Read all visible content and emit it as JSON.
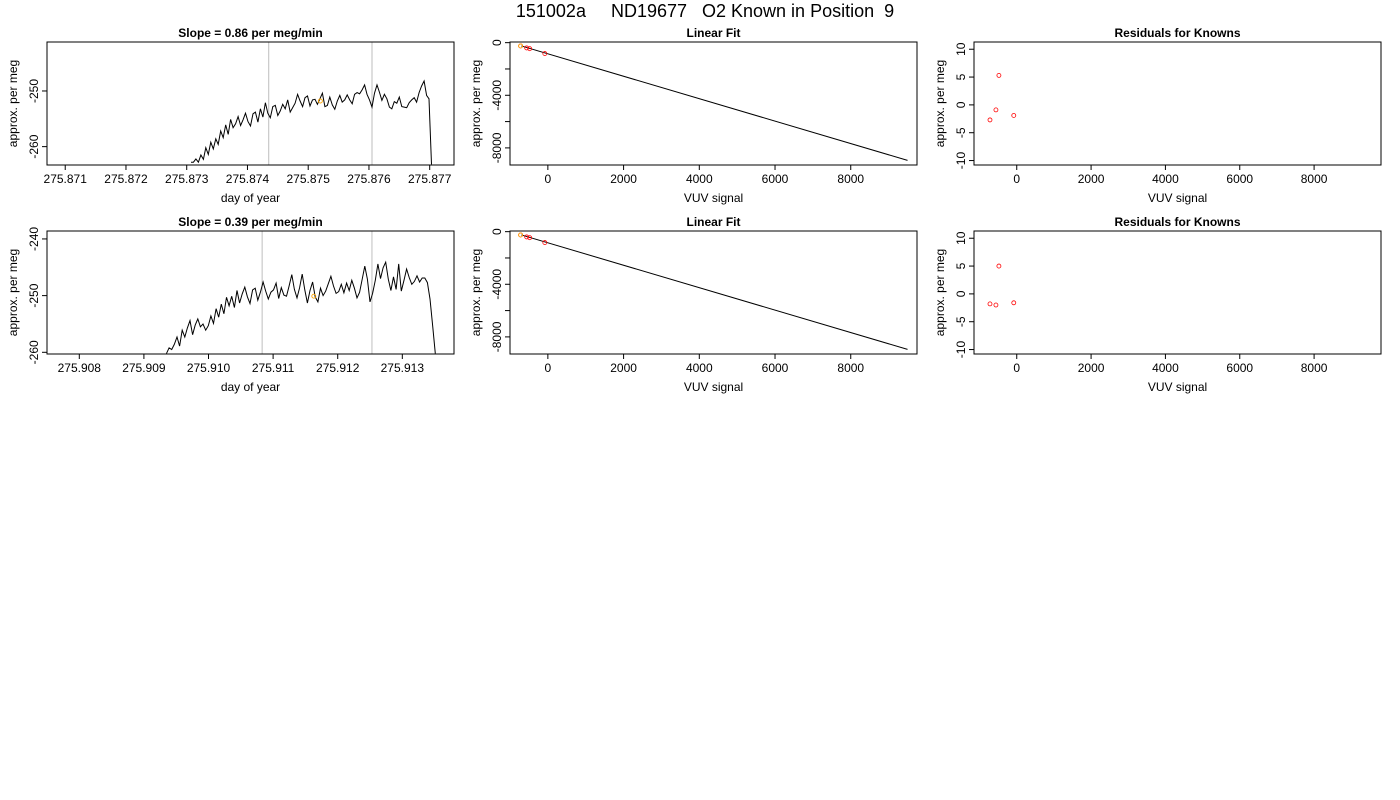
{
  "main_title": "151002a     ND19677   O2 Known in Position  9",
  "colors": {
    "line": "#000000",
    "guide": "#bebebe",
    "known_point": "#ff0000",
    "highlight_point": "#ffa500"
  },
  "chart_data": [
    {
      "id": "timeseries-1",
      "type": "line",
      "title": "Slope =  0.86  per meg/min",
      "xlabel": "day of year",
      "ylabel": "approx. per meg",
      "xlim": [
        275.8707,
        275.8774
      ],
      "ylim": [
        -263.3,
        -241.2
      ],
      "xticks": [
        275.871,
        275.872,
        275.873,
        275.874,
        275.875,
        275.876,
        275.877
      ],
      "xtick_labels": [
        "275.871",
        "275.872",
        "275.873",
        "275.874",
        "275.875",
        "275.876",
        "275.877"
      ],
      "yticks": [
        -260,
        -250
      ],
      "ytick_labels": [
        "-260",
        "-250"
      ],
      "vlines": [
        275.87435,
        275.87605
      ],
      "series": [
        {
          "values": [
            -262.8,
            -262.8,
            -262.2,
            -262.8,
            -261.5,
            -262.3,
            -260.2,
            -261.4,
            -259.2,
            -260.4,
            -258.6,
            -259.6,
            -257.2,
            -258.4,
            -256.1,
            -257.8,
            -255.1,
            -256.6,
            -255.9,
            -254.6,
            -256.2,
            -255.2,
            -254.0,
            -255.5,
            -256.3,
            -254.1,
            -253.8,
            -255.6,
            -253.2,
            -254.7,
            -252.1,
            -254.0,
            -254.8,
            -252.8,
            -252.6,
            -254.4,
            -253.6,
            -252.4,
            -253.2,
            -251.6,
            -253.8,
            -253.0,
            -252.2,
            -250.6,
            -251.8,
            -252.8,
            -251.2,
            -250.9,
            -252.7,
            -251.6,
            -251.5,
            -252.4,
            -251.4,
            -250.4,
            -252.8,
            -252.6,
            -251.1,
            -252.5,
            -253.3,
            -251.8,
            -250.8,
            -252.0,
            -251.6,
            -250.7,
            -251.6,
            -252.3,
            -250.6,
            -250.3,
            -250.5,
            -249.8,
            -248.9,
            -250.6,
            -251.6,
            -252.9,
            -250.4,
            -248.9,
            -250.2,
            -251.7,
            -250.6,
            -251.4,
            -252.9,
            -253.2,
            -251.9,
            -252.2,
            -251.1,
            -252.8,
            -252.9,
            -253.0,
            -252.1,
            -251.6,
            -251.2,
            -252.0,
            -250.3,
            -249.1,
            -248.2,
            -250.8,
            -251.4,
            -263.2
          ]
        }
      ],
      "series_xrange": [
        275.87307,
        275.87703
      ],
      "highlight": {
        "x": 275.8752,
        "y": -251.8
      }
    },
    {
      "id": "linearfit-1",
      "type": "scatter",
      "title": "Linear Fit",
      "xlabel": "VUV signal",
      "ylabel": "approx. per meg",
      "xlim": [
        -1000,
        9750
      ],
      "ylim": [
        -9300,
        50
      ],
      "xticks": [
        0,
        2000,
        4000,
        6000,
        8000
      ],
      "xtick_labels": [
        "0",
        "2000",
        "4000",
        "6000",
        "8000"
      ],
      "yticks": [
        0,
        -4000,
        -8000
      ],
      "ytick_labels": [
        "0",
        "-4000",
        "-8000"
      ],
      "minor_yticks": [
        -2000,
        -6000
      ],
      "fit_line": {
        "x": [
          -700,
          9500
        ],
        "y": [
          -250,
          -8950
        ]
      },
      "points": [
        {
          "x": -720,
          "y": -250
        },
        {
          "x": -560,
          "y": -400
        },
        {
          "x": -480,
          "y": -460
        },
        {
          "x": -80,
          "y": -830
        }
      ],
      "highlight": {
        "x": -720,
        "y": -250
      }
    },
    {
      "id": "residuals-1",
      "type": "scatter",
      "title": "Residuals for Knowns",
      "xlabel": "VUV signal",
      "ylabel": "approx. per meg",
      "xlim": [
        -1150,
        9800
      ],
      "ylim": [
        -10.8,
        11.3
      ],
      "xticks": [
        0,
        2000,
        4000,
        6000,
        8000
      ],
      "xtick_labels": [
        "0",
        "2000",
        "4000",
        "6000",
        "8000"
      ],
      "yticks": [
        10,
        5,
        0,
        -5,
        -10
      ],
      "ytick_labels": [
        "10",
        "5",
        "0",
        "-5",
        "-10"
      ],
      "points": [
        {
          "x": -720,
          "y": -2.7
        },
        {
          "x": -560,
          "y": -0.9
        },
        {
          "x": -480,
          "y": 5.3
        },
        {
          "x": -80,
          "y": -1.9
        }
      ]
    },
    {
      "id": "timeseries-2",
      "type": "line",
      "title": "Slope =  0.39  per meg/min",
      "xlabel": "day of year",
      "ylabel": "approx. per meg",
      "xlim": [
        275.9075,
        275.9138
      ],
      "ylim": [
        -260.3,
        -238.6
      ],
      "xticks": [
        275.908,
        275.909,
        275.91,
        275.911,
        275.912,
        275.913
      ],
      "xtick_labels": [
        "275.908",
        "275.909",
        "275.910",
        "275.911",
        "275.912",
        "275.913"
      ],
      "yticks": [
        -260,
        -250,
        -240
      ],
      "ytick_labels": [
        "-260",
        "-250",
        "-240"
      ],
      "vlines": [
        275.91083,
        275.91253
      ],
      "series": [
        {
          "values": [
            -260.2,
            -259.2,
            -259.5,
            -258.6,
            -257.3,
            -258.9,
            -256.1,
            -257.3,
            -255.7,
            -254.4,
            -256.9,
            -255.2,
            -254.1,
            -255.5,
            -255.0,
            -256.1,
            -255.3,
            -253.6,
            -254.9,
            -252.3,
            -253.8,
            -251.5,
            -253.2,
            -250.3,
            -251.8,
            -250.1,
            -252.1,
            -249.1,
            -251.3,
            -249.7,
            -248.5,
            -250.2,
            -251.4,
            -249.0,
            -248.7,
            -250.8,
            -249.4,
            -247.6,
            -249.2,
            -250.6,
            -249.4,
            -249.0,
            -247.8,
            -250.5,
            -248.6,
            -249.9,
            -250.1,
            -248.3,
            -246.3,
            -248.9,
            -250.4,
            -248.6,
            -246.2,
            -249.0,
            -251.3,
            -249.1,
            -247.6,
            -250.2,
            -251.1,
            -248.7,
            -250.0,
            -249.2,
            -247.9,
            -246.6,
            -248.3,
            -249.6,
            -249.3,
            -248.0,
            -249.5,
            -247.8,
            -249.1,
            -247.3,
            -248.7,
            -250.4,
            -249.4,
            -247.1,
            -244.8,
            -247.1,
            -251.1,
            -249.6,
            -247.3,
            -244.4,
            -247.0,
            -245.1,
            -244.1,
            -247.1,
            -249.1,
            -246.7,
            -248.9,
            -244.4,
            -249.2,
            -247.3,
            -245.3,
            -246.8,
            -248.0,
            -247.5,
            -246.5,
            -247.6,
            -246.9,
            -246.9,
            -247.7,
            -250.6,
            -255.4,
            -260.2
          ]
        }
      ],
      "series_xrange": [
        275.90935,
        275.91351
      ],
      "highlight": {
        "x": 275.91163,
        "y": -250.1
      }
    },
    {
      "id": "linearfit-2",
      "type": "scatter",
      "title": "Linear Fit",
      "xlabel": "VUV signal",
      "ylabel": "approx. per meg",
      "xlim": [
        -1000,
        9750
      ],
      "ylim": [
        -9300,
        50
      ],
      "xticks": [
        0,
        2000,
        4000,
        6000,
        8000
      ],
      "xtick_labels": [
        "0",
        "2000",
        "4000",
        "6000",
        "8000"
      ],
      "yticks": [
        0,
        -4000,
        -8000
      ],
      "ytick_labels": [
        "0",
        "-4000",
        "-8000"
      ],
      "minor_yticks": [
        -2000,
        -6000
      ],
      "fit_line": {
        "x": [
          -700,
          9500
        ],
        "y": [
          -250,
          -8950
        ]
      },
      "points": [
        {
          "x": -720,
          "y": -250
        },
        {
          "x": -560,
          "y": -400
        },
        {
          "x": -480,
          "y": -460
        },
        {
          "x": -80,
          "y": -830
        }
      ],
      "highlight": {
        "x": -720,
        "y": -250
      }
    },
    {
      "id": "residuals-2",
      "type": "scatter",
      "title": "Residuals for Knowns",
      "xlabel": "VUV signal",
      "ylabel": "approx. per meg",
      "xlim": [
        -1150,
        9800
      ],
      "ylim": [
        -10.8,
        11.3
      ],
      "xticks": [
        0,
        2000,
        4000,
        6000,
        8000
      ],
      "xtick_labels": [
        "0",
        "2000",
        "4000",
        "6000",
        "8000"
      ],
      "yticks": [
        10,
        5,
        0,
        -5,
        -10
      ],
      "ytick_labels": [
        "10",
        "5",
        "0",
        "-5",
        "-10"
      ],
      "points": [
        {
          "x": -720,
          "y": -1.8
        },
        {
          "x": -560,
          "y": -2.0
        },
        {
          "x": -480,
          "y": 5.0
        },
        {
          "x": -80,
          "y": -1.6
        }
      ]
    }
  ]
}
